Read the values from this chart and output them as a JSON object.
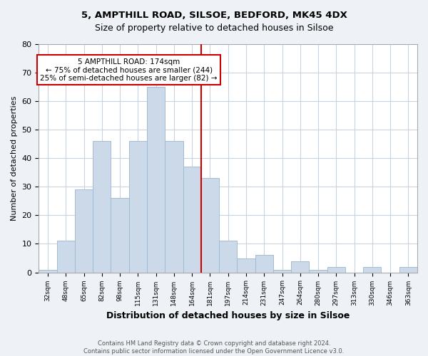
{
  "title1": "5, AMPTHILL ROAD, SILSOE, BEDFORD, MK45 4DX",
  "title2": "Size of property relative to detached houses in Silsoe",
  "xlabel": "Distribution of detached houses by size in Silsoe",
  "ylabel": "Number of detached properties",
  "categories": [
    "32sqm",
    "48sqm",
    "65sqm",
    "82sqm",
    "98sqm",
    "115sqm",
    "131sqm",
    "148sqm",
    "164sqm",
    "181sqm",
    "197sqm",
    "214sqm",
    "231sqm",
    "247sqm",
    "264sqm",
    "280sqm",
    "297sqm",
    "313sqm",
    "330sqm",
    "346sqm",
    "363sqm"
  ],
  "values": [
    1,
    11,
    29,
    46,
    26,
    46,
    65,
    46,
    37,
    33,
    11,
    5,
    6,
    1,
    4,
    1,
    2,
    0,
    2,
    0,
    2
  ],
  "bar_color": "#ccd9e8",
  "bar_edge_color": "#a0bcd4",
  "annotation_text": "5 AMPTHILL ROAD: 174sqm\n← 75% of detached houses are smaller (244)\n25% of semi-detached houses are larger (82) →",
  "annotation_box_color": "#ffffff",
  "annotation_box_edge_color": "#cc0000",
  "ylim": [
    0,
    80
  ],
  "yticks": [
    0,
    10,
    20,
    30,
    40,
    50,
    60,
    70,
    80
  ],
  "vline_color": "#cc0000",
  "footer": "Contains HM Land Registry data © Crown copyright and database right 2024.\nContains public sector information licensed under the Open Government Licence v3.0.",
  "bg_color": "#eef2f7",
  "plot_bg_color": "#ffffff",
  "grid_color": "#c8d4e0",
  "title1_fontsize": 9.5,
  "title2_fontsize": 9,
  "ylabel_fontsize": 8,
  "xlabel_fontsize": 9,
  "xlabel_fontweight": "bold",
  "tick_label_fontsize": 6.5,
  "ytick_fontsize": 8,
  "annotation_fontsize": 7.5,
  "footer_fontsize": 6,
  "vline_x": 8.5
}
